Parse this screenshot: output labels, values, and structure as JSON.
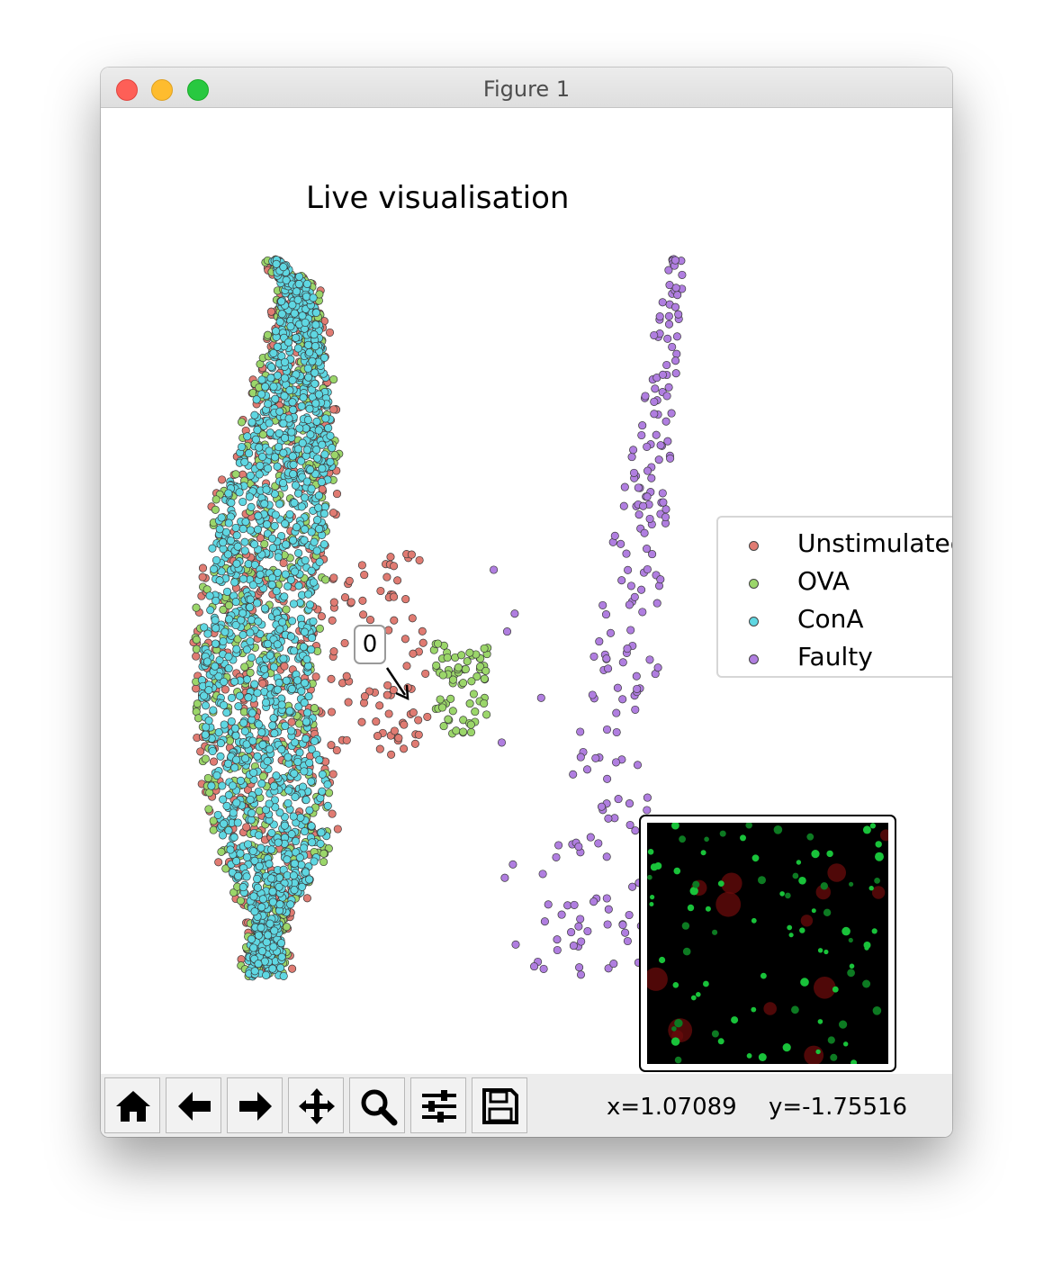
{
  "window": {
    "title": "Figure 1"
  },
  "plot": {
    "title": "Live visualisation"
  },
  "legend": {
    "items": [
      {
        "label": "Unstimulated",
        "color": "#e07b72"
      },
      {
        "label": "OVA",
        "color": "#9bd66a"
      },
      {
        "label": "ConA",
        "color": "#5fd7e2"
      },
      {
        "label": "Faulty",
        "color": "#b07ee0"
      }
    ]
  },
  "annotation": {
    "label": "0"
  },
  "toolbar": {
    "buttons": [
      {
        "name": "home-button",
        "icon": "home-icon"
      },
      {
        "name": "back-button",
        "icon": "arrow-left-icon"
      },
      {
        "name": "forward-button",
        "icon": "arrow-right-icon"
      },
      {
        "name": "pan-button",
        "icon": "move-icon"
      },
      {
        "name": "zoom-button",
        "icon": "search-icon"
      },
      {
        "name": "configure-subplots-button",
        "icon": "sliders-icon"
      },
      {
        "name": "save-button",
        "icon": "save-icon"
      }
    ],
    "x_readout": "x=1.07089",
    "y_readout": "y=-1.75516"
  },
  "chart_data": {
    "type": "scatter",
    "title": "Live visualisation",
    "xlabel": "",
    "ylabel": "",
    "axes_visible": false,
    "legend_position": "right",
    "series": [
      {
        "name": "Unstimulated",
        "color": "#e07b72"
      },
      {
        "name": "OVA",
        "color": "#9bd66a"
      },
      {
        "name": "ConA",
        "color": "#5fd7e2"
      },
      {
        "name": "Faulty",
        "color": "#b07ee0"
      }
    ]
  }
}
